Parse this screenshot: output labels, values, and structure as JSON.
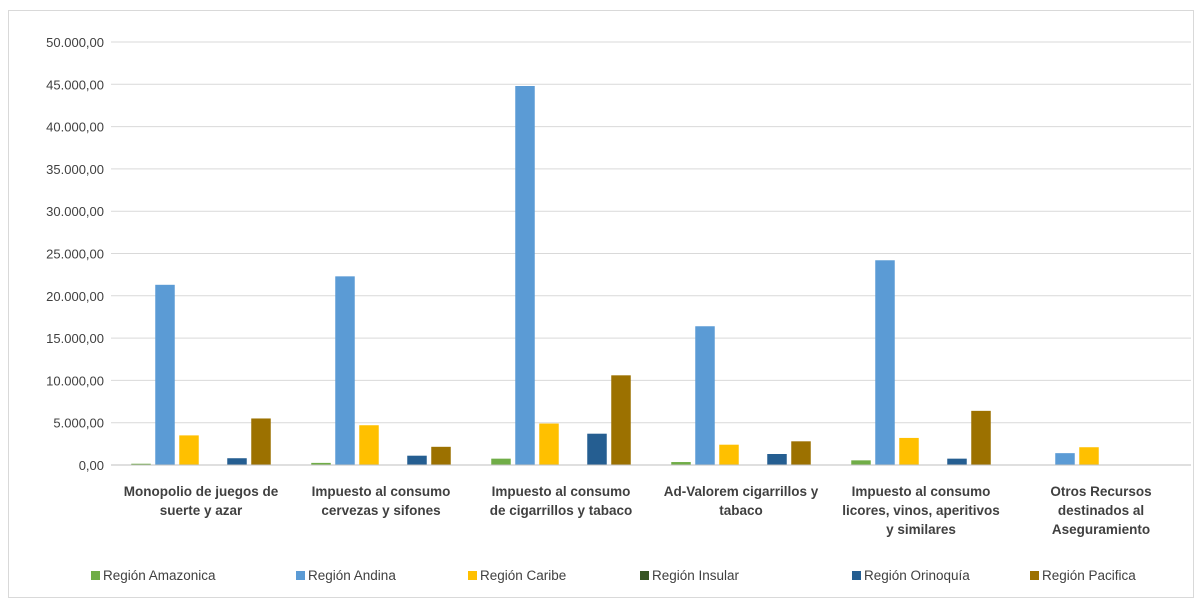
{
  "chart_data": {
    "type": "bar",
    "title": "",
    "xlabel": "",
    "ylabel": "",
    "ylim": [
      0,
      50000
    ],
    "y_ticks": [
      "0,00",
      "5.000,00",
      "10.000,00",
      "15.000,00",
      "20.000,00",
      "25.000,00",
      "30.000,00",
      "35.000,00",
      "40.000,00",
      "45.000,00",
      "50.000,00"
    ],
    "grid": true,
    "legend_position": "bottom",
    "categories": [
      [
        "Monopolio de juegos de",
        "suerte y azar"
      ],
      [
        "Impuesto al consumo",
        "cervezas y sifones"
      ],
      [
        "Impuesto al consumo",
        "de cigarrillos y tabaco"
      ],
      [
        "Ad-Valorem cigarrillos y",
        "tabaco"
      ],
      [
        "Impuesto al consumo",
        "licores, vinos, aperitivos",
        "y similares"
      ],
      [
        "Otros Recursos",
        "destinados al",
        "Aseguramiento"
      ]
    ],
    "series": [
      {
        "name": "Región Amazonica",
        "color": "#70ad47",
        "values": [
          150,
          250,
          750,
          350,
          550,
          0
        ]
      },
      {
        "name": "Región Andina",
        "color": "#5b9bd5",
        "values": [
          21300,
          22300,
          44800,
          16400,
          24200,
          1400
        ]
      },
      {
        "name": "Región Caribe",
        "color": "#ffc000",
        "values": [
          3500,
          4700,
          4900,
          2400,
          3200,
          2100
        ]
      },
      {
        "name": "Región Insular",
        "color": "#375623",
        "values": [
          0,
          0,
          0,
          0,
          0,
          0
        ]
      },
      {
        "name": "Región Orinoquía",
        "color": "#255e91",
        "values": [
          800,
          1100,
          3700,
          1300,
          750,
          0
        ]
      },
      {
        "name": "Región Pacifica",
        "color": "#9c7100",
        "values": [
          5500,
          2150,
          10600,
          2800,
          6400,
          0
        ]
      }
    ]
  }
}
